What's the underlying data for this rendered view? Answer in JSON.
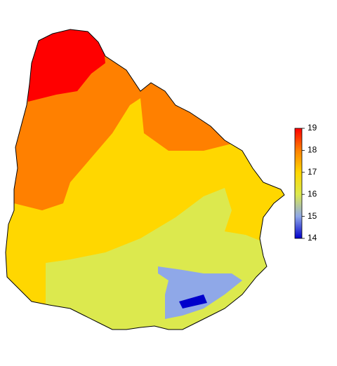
{
  "colorbar": {
    "lim": [
      14,
      19
    ],
    "ticks": [
      14,
      15,
      16,
      17,
      18,
      19
    ],
    "colors": [
      "#0000cc",
      "#8fa8e8",
      "#dce94e",
      "#ffd700",
      "#ff8000",
      "#ff0000"
    ]
  }
}
